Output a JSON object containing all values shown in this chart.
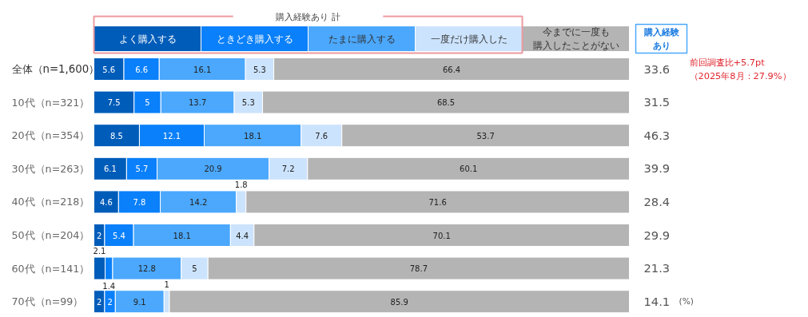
{
  "chart_data": {
    "type": "bar",
    "orientation": "horizontal",
    "stacked": true,
    "data_labels": true,
    "legend": "top",
    "grid": false,
    "categories": [
      "全体（n=1,600）",
      "10代（n=321）",
      "20代（n=354）",
      "30代（n=263）",
      "40代（n=218）",
      "50代（n=204）",
      "60代（n=141）",
      "70代（n=99）"
    ],
    "series": [
      {
        "name": "よく購入する",
        "color": "#005cb9",
        "values": [
          5.6,
          7.5,
          8.5,
          6.1,
          4.6,
          2,
          2.1,
          2
        ]
      },
      {
        "name": "ときどき購入する",
        "color": "#0a80fa",
        "values": [
          6.6,
          5,
          12.1,
          5.7,
          7.8,
          5.4,
          1.4,
          2
        ]
      },
      {
        "name": "たまに購入する",
        "color": "#4ba8fd",
        "values": [
          16.1,
          13.7,
          18.1,
          20.9,
          14.2,
          18.1,
          12.8,
          9.1
        ]
      },
      {
        "name": "一度だけ購入した",
        "color": "#cce3fd",
        "values": [
          5.3,
          5.3,
          7.6,
          7.2,
          1.8,
          4.4,
          5,
          1
        ]
      },
      {
        "name": "今までに一度も購入したことがない",
        "color": "#b4b4b4",
        "values": [
          66.4,
          68.5,
          53.7,
          60.1,
          71.6,
          70.1,
          78.7,
          85.9
        ]
      }
    ],
    "xlim": [
      0,
      100
    ],
    "annotations": [
      "購入経験あり 計",
      "購入経験あり",
      "前回調査比+5.7pt（2025年8月：27.9%）",
      "(%)",
      "33.6",
      "31.5",
      "46.3",
      "39.9",
      "28.4",
      "29.9",
      "21.3",
      "14.1"
    ]
  }
}
